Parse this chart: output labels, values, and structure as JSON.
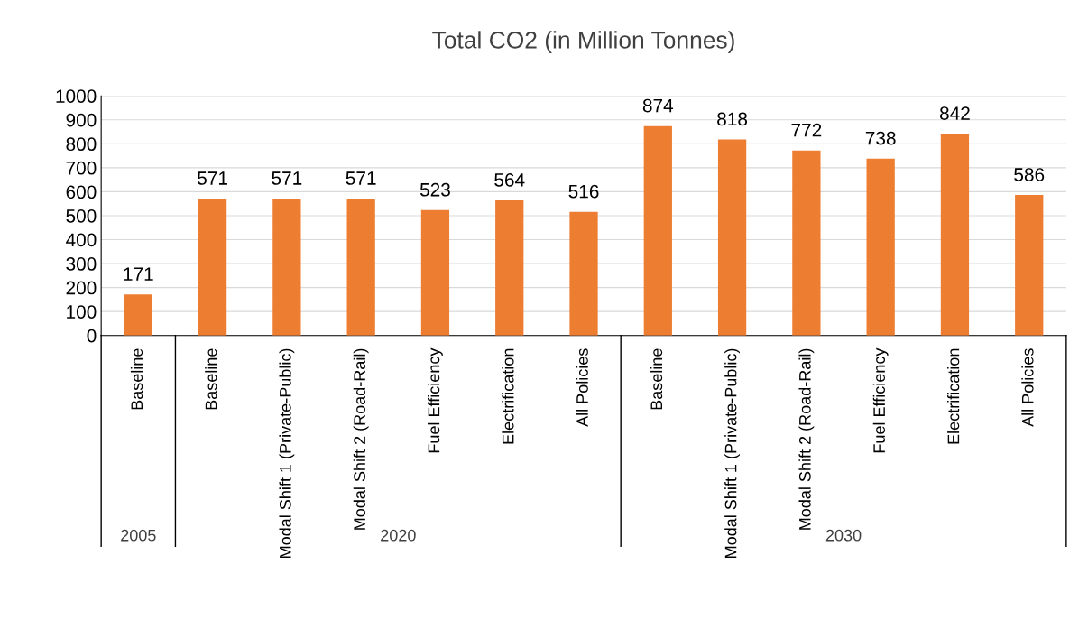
{
  "chart_data": {
    "type": "bar",
    "title": "Total CO2 (in Million Tonnes)",
    "categories": [
      "Baseline",
      "Baseline",
      "Modal Shift 1 (Private-Public)",
      "Modal Shift 2 (Road-Rail)",
      "Fuel Efficiency",
      "Electrification",
      "All Policies",
      "Baseline",
      "Modal Shift 1 (Private-Public)",
      "Modal Shift 2 (Road-Rail)",
      "Fuel Efficiency",
      "Electrification",
      "All Policies"
    ],
    "values": [
      171,
      571,
      571,
      571,
      523,
      564,
      516,
      874,
      818,
      772,
      738,
      842,
      586
    ],
    "color": "#ed7d31",
    "ylim": [
      0,
      1000
    ],
    "yticks": [
      0,
      100,
      200,
      300,
      400,
      500,
      600,
      700,
      800,
      900,
      1000
    ],
    "grid": "y",
    "data_labels": true,
    "annotations": [
      "2005",
      "2020",
      "2030"
    ]
  }
}
